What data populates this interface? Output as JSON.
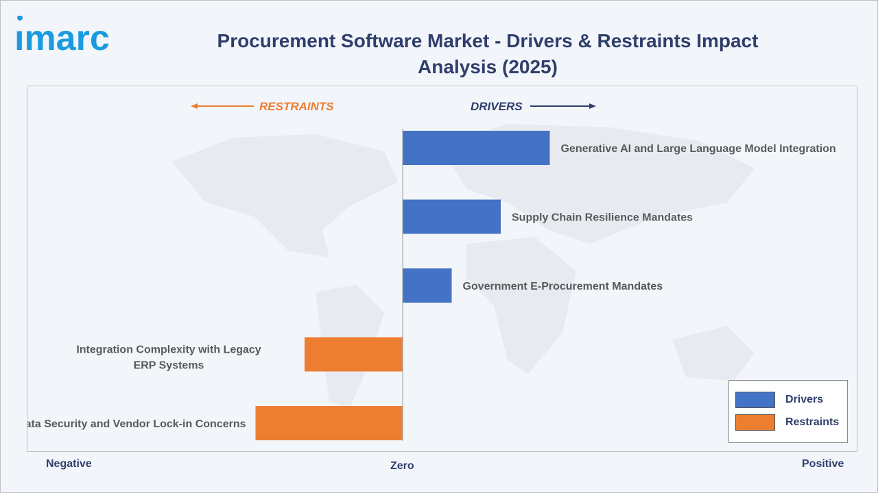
{
  "header": {
    "title": "Procurement Software Market - Drivers & Restraints Impact Analysis (2025)"
  },
  "direction_labels": {
    "restraints": "RESTRAINTS",
    "drivers": "DRIVERS"
  },
  "axis_labels": {
    "negative": "Negative",
    "zero": "Zero",
    "positive": "Positive"
  },
  "legend": {
    "drivers": "Drivers",
    "restraints": "Restraints"
  },
  "colors": {
    "drivers": "#4472c4",
    "restraints": "#ed7d31",
    "title": "#2f3e6b",
    "label": "#595959"
  },
  "chart_data": {
    "type": "bar",
    "orientation": "horizontal",
    "title": "Procurement Software Market - Drivers & Restraints Impact Analysis (2025)",
    "xlim": [
      -3,
      3
    ],
    "grid": false,
    "legend_position": "bottom-right",
    "categories": [
      "Generative AI and Large Language Model Integration",
      "Supply Chain Resilience Mandates",
      "Government E-Procurement Mandates",
      "Integration Complexity with Legacy ERP Systems",
      "Data Security and Vendor Lock-in Concerns"
    ],
    "series": [
      {
        "name": "Drivers",
        "values": [
          3,
          2,
          1,
          null,
          null
        ]
      },
      {
        "name": "Restraints",
        "values": [
          null,
          null,
          null,
          -2,
          -3
        ]
      }
    ]
  }
}
